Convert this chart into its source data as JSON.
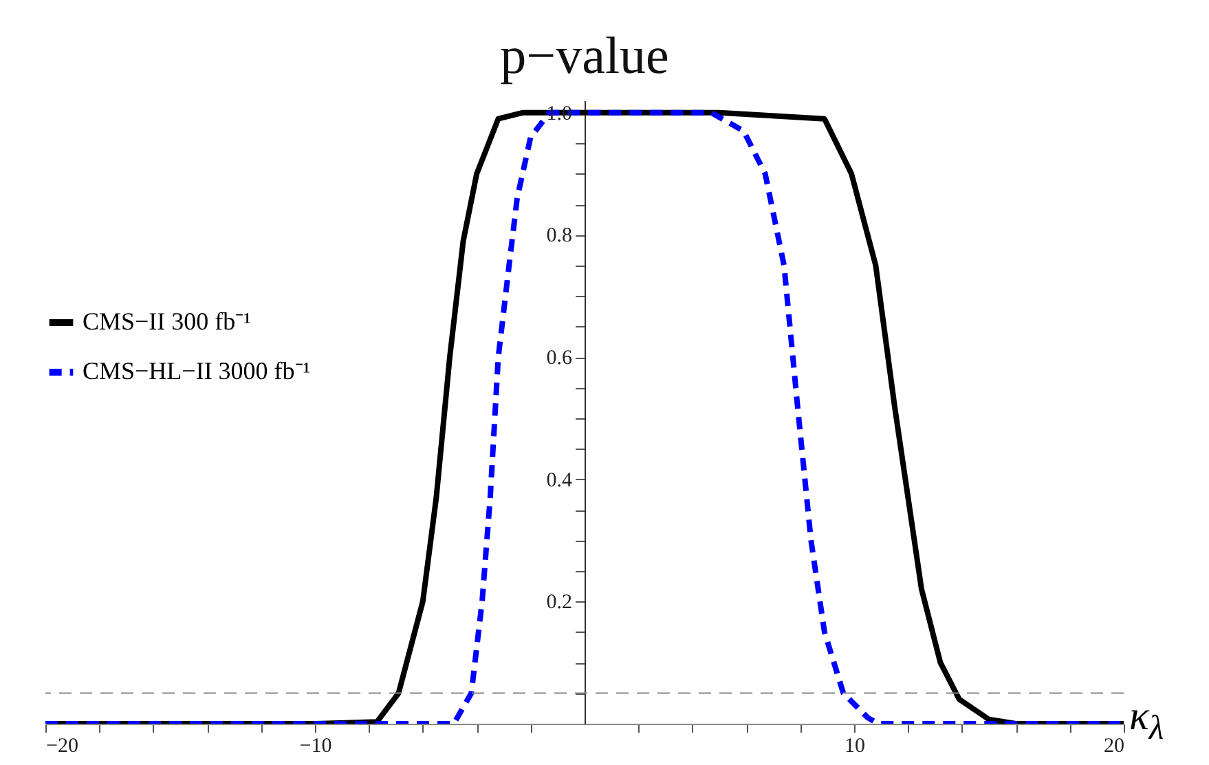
{
  "chart_data": {
    "type": "line",
    "title": "p−value",
    "xlabel": "κ$_{λ}$",
    "xlim": [
      -20,
      20
    ],
    "ylim": [
      0,
      1.02
    ],
    "xticks": [
      {
        "value": -20,
        "label": "−20"
      },
      {
        "value": -18,
        "label": null
      },
      {
        "value": -16,
        "label": null
      },
      {
        "value": -14,
        "label": null
      },
      {
        "value": -12,
        "label": null
      },
      {
        "value": -10,
        "label": "−10"
      },
      {
        "value": -8,
        "label": null
      },
      {
        "value": -6,
        "label": null
      },
      {
        "value": -4,
        "label": null
      },
      {
        "value": -2,
        "label": null
      },
      {
        "value": 2,
        "label": null
      },
      {
        "value": 4,
        "label": null
      },
      {
        "value": 6,
        "label": null
      },
      {
        "value": 8,
        "label": null
      },
      {
        "value": 10,
        "label": "10"
      },
      {
        "value": 12,
        "label": null
      },
      {
        "value": 14,
        "label": null
      },
      {
        "value": 16,
        "label": null
      },
      {
        "value": 18,
        "label": null
      },
      {
        "value": 20,
        "label": "20"
      }
    ],
    "yticks": [
      {
        "value": 0.05,
        "label": null
      },
      {
        "value": 0.1,
        "label": null
      },
      {
        "value": 0.15,
        "label": null
      },
      {
        "value": 0.2,
        "label": "0.2"
      },
      {
        "value": 0.25,
        "label": null
      },
      {
        "value": 0.3,
        "label": null
      },
      {
        "value": 0.35,
        "label": null
      },
      {
        "value": 0.4,
        "label": "0.4"
      },
      {
        "value": 0.45,
        "label": null
      },
      {
        "value": 0.5,
        "label": null
      },
      {
        "value": 0.55,
        "label": null
      },
      {
        "value": 0.6,
        "label": "0.6"
      },
      {
        "value": 0.65,
        "label": null
      },
      {
        "value": 0.7,
        "label": null
      },
      {
        "value": 0.75,
        "label": null
      },
      {
        "value": 0.8,
        "label": "0.8"
      },
      {
        "value": 0.85,
        "label": null
      },
      {
        "value": 0.9,
        "label": null
      },
      {
        "value": 0.95,
        "label": null
      },
      {
        "value": 1.0,
        "label": "1.0"
      }
    ],
    "legend": "left",
    "grid": false,
    "series": [
      {
        "name": "CMS−II 300 fb⁻¹",
        "color": "#000000",
        "line_style": "solid",
        "x": [
          -20,
          -10,
          -7.7,
          -6.9,
          -6.0,
          -5.5,
          -5.0,
          -4.5,
          -4.0,
          -3.2,
          -2.3,
          0,
          5,
          8.9,
          9.9,
          10.8,
          11.5,
          12.0,
          12.5,
          13.2,
          13.9,
          15.0,
          16,
          20
        ],
        "values": [
          0,
          0,
          0.003,
          0.05,
          0.2,
          0.37,
          0.6,
          0.79,
          0.9,
          0.99,
          1.0,
          1.0,
          1.0,
          0.99,
          0.9,
          0.75,
          0.52,
          0.37,
          0.22,
          0.1,
          0.04,
          0.007,
          0,
          0
        ]
      },
      {
        "name": "CMS−HL−II 3000 fb⁻¹",
        "color": "#0000ff",
        "line_style": "dashed",
        "x": [
          -20,
          -10,
          -4.85,
          -4.2,
          -3.8,
          -3.5,
          -3.2,
          -2.8,
          -2.5,
          -2.0,
          -1.3,
          0,
          4.7,
          5.9,
          6.7,
          7.4,
          7.9,
          8.4,
          8.9,
          9.6,
          10.5,
          10.9,
          20
        ],
        "values": [
          0,
          0,
          0,
          0.05,
          0.2,
          0.37,
          0.6,
          0.75,
          0.86,
          0.96,
          1.0,
          1.0,
          1.0,
          0.97,
          0.9,
          0.75,
          0.52,
          0.3,
          0.15,
          0.05,
          0.01,
          0,
          0
        ]
      }
    ],
    "ref_lines": [
      {
        "axis": "y",
        "value": 0.05,
        "color": "#888888",
        "line_style": "dashed"
      }
    ]
  }
}
